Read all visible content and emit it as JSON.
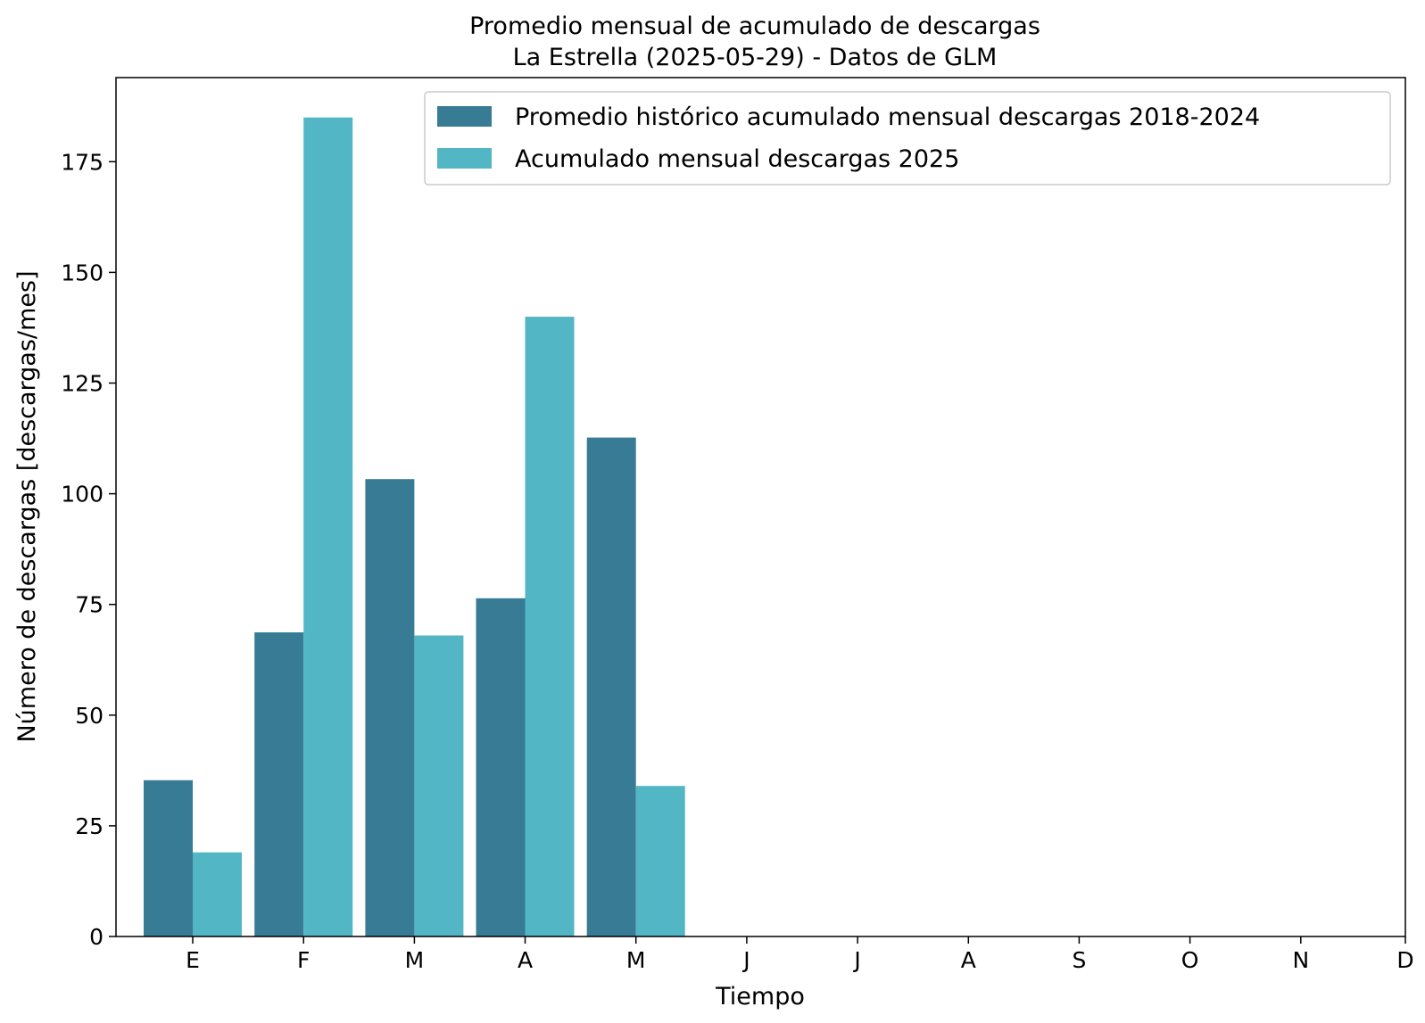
{
  "chart_data": {
    "type": "bar",
    "title_line1": "Promedio mensual de acumulado de descargas",
    "title_line2": "La Estrella (2025-05-29) - Datos de GLM",
    "xlabel": "Tiempo",
    "ylabel": "Número de descargas [descargas/mes]",
    "categories": [
      "E",
      "F",
      "M",
      "A",
      "M",
      "J",
      "J",
      "A",
      "S",
      "O",
      "N",
      "D"
    ],
    "series": [
      {
        "name": "Promedio histórico acumulado mensual descargas 2018-2024",
        "color": "#387b94",
        "values": [
          35.3,
          68.7,
          103.3,
          76.4,
          112.7,
          null,
          null,
          null,
          null,
          null,
          null,
          null
        ]
      },
      {
        "name": "Acumulado mensual descargas 2025",
        "color": "#53b6c5",
        "values": [
          19,
          185,
          68,
          140,
          34,
          null,
          null,
          null,
          null,
          null,
          null,
          null
        ]
      }
    ],
    "ylim": [
      0,
      194
    ],
    "yticks": [
      0,
      25,
      50,
      75,
      100,
      125,
      150,
      175
    ],
    "grid": false,
    "legend_position": "top-right"
  }
}
